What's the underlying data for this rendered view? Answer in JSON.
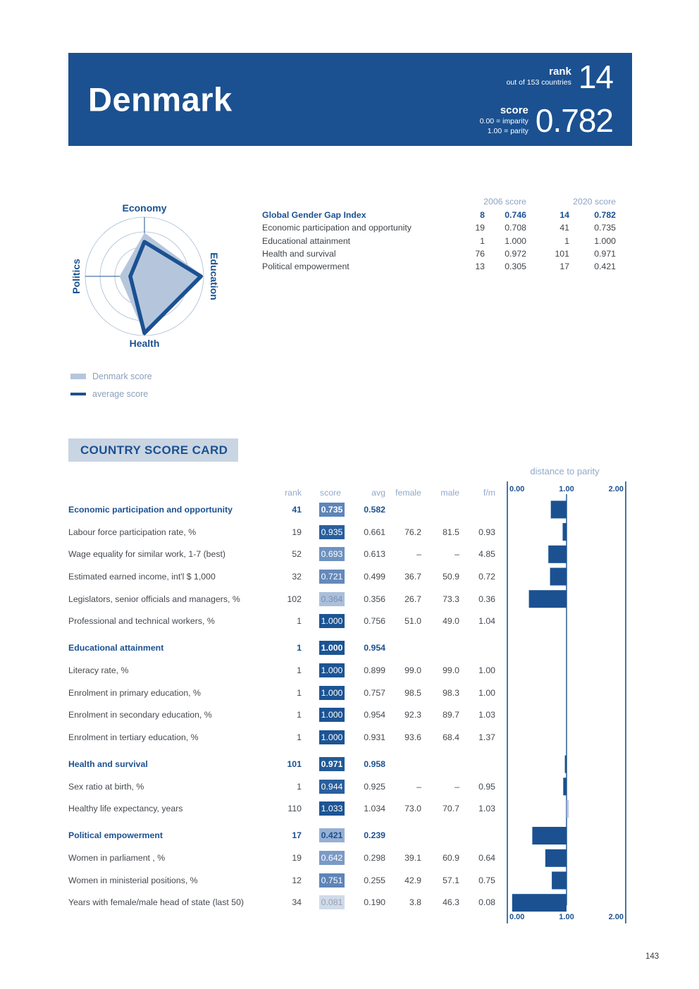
{
  "page": {
    "number": "143"
  },
  "header": {
    "country": "Denmark",
    "rank_label": "rank",
    "rank_sub": "out of 153 countries",
    "rank_value": "14",
    "score_label": "score",
    "score_sub1": "0.00 = imparity",
    "score_sub2": "1.00 = parity",
    "score_value": "0.782"
  },
  "colors": {
    "navy": "#1B5191",
    "light_fill": "#B5C6DC",
    "over_parity_bar": "#A9BDD8",
    "grid": "#A9BCD4",
    "muted_label": "#93A9C9"
  },
  "radar_legend": [
    "Denmark score",
    "average score"
  ],
  "chart_data": [
    {
      "type": "radar",
      "axes": [
        "Economy",
        "Education",
        "Health",
        "Politics"
      ],
      "rings": [
        0.25,
        0.5,
        0.75,
        1.0
      ],
      "series": [
        {
          "name": "Denmark score",
          "style": "filled-light",
          "values": [
            0.735,
            1.0,
            0.971,
            0.421
          ]
        },
        {
          "name": "average score",
          "style": "navy-line",
          "values": [
            0.582,
            0.954,
            0.958,
            0.239
          ]
        }
      ]
    },
    {
      "type": "bar",
      "title": "distance to parity",
      "orientation": "horizontal",
      "anchor": 1.0,
      "xlim": [
        0,
        2
      ],
      "ticks": [
        "0.00",
        "1.00",
        "2.00"
      ],
      "categories": [
        "Economic participation and opportunity",
        "Labour force participation rate, %",
        "Wage equality for similar work, 1-7 (best)",
        "Estimated earned income, int'l $ 1,000",
        "Legislators, senior officials and managers, %",
        "Professional and technical workers, %",
        "Educational attainment",
        "Literacy rate, %",
        "Enrolment in primary education, %",
        "Enrolment in secondary education, %",
        "Enrolment in tertiary education, %",
        "Health and survival",
        "Sex ratio at birth, %",
        "Healthy life expectancy, years",
        "Political empowerment",
        "Women in parliament , %",
        "Women in ministerial positions, %",
        "Years with female/male head of state (last 50)"
      ],
      "values": [
        0.735,
        0.935,
        0.693,
        0.721,
        0.364,
        1.0,
        1.0,
        1.0,
        1.0,
        1.0,
        1.0,
        0.971,
        0.944,
        1.033,
        0.421,
        0.642,
        0.751,
        0.081
      ]
    }
  ],
  "index_table": {
    "col_headers": [
      "2006 score",
      "2020 score"
    ],
    "rows": [
      {
        "label": "Global Gender Gap Index",
        "rank_2006": "8",
        "score_2006": "0.746",
        "rank_2020": "14",
        "score_2020": "0.782",
        "bold": true
      },
      {
        "label": "Economic participation and opportunity",
        "rank_2006": "19",
        "score_2006": "0.708",
        "rank_2020": "41",
        "score_2020": "0.735",
        "bold": false
      },
      {
        "label": "Educational attainment",
        "rank_2006": "1",
        "score_2006": "1.000",
        "rank_2020": "1",
        "score_2020": "1.000",
        "bold": false
      },
      {
        "label": "Health and survival",
        "rank_2006": "76",
        "score_2006": "0.972",
        "rank_2020": "101",
        "score_2020": "0.971",
        "bold": false
      },
      {
        "label": "Political empowerment",
        "rank_2006": "13",
        "score_2006": "0.305",
        "rank_2020": "17",
        "score_2020": "0.421",
        "bold": false
      }
    ]
  },
  "scorecard": {
    "title": "COUNTRY SCORE CARD",
    "chart_title": "distance to parity",
    "col_headers": [
      "rank",
      "score",
      "avg",
      "female",
      "male",
      "f/m"
    ],
    "axis_ticks": [
      "0.00",
      "1.00",
      "2.00"
    ],
    "rows": [
      {
        "type": "section",
        "label": "Economic participation and opportunity",
        "rank": "41",
        "score": "0.735",
        "score_num": 0.735,
        "avg": "0.582",
        "female": "",
        "male": "",
        "fm": "",
        "box_bg": "#5E85B8",
        "box_fg": "#FFFFFF"
      },
      {
        "type": "indicator",
        "label": "Labour force participation rate, %",
        "rank": "19",
        "score": "0.935",
        "score_num": 0.935,
        "avg": "0.661",
        "female": "76.2",
        "male": "81.5",
        "fm": "0.93",
        "box_bg": "#2A5F9D",
        "box_fg": "#FFFFFF"
      },
      {
        "type": "indicator",
        "label": "Wage equality for similar work, 1-7 (best)",
        "rank": "52",
        "score": "0.693",
        "score_num": 0.693,
        "avg": "0.613",
        "female": "–",
        "male": "–",
        "fm": "4.85",
        "box_bg": "#6F92C0",
        "box_fg": "#FFFFFF"
      },
      {
        "type": "indicator",
        "label": "Estimated earned income, int'l $ 1,000",
        "rank": "32",
        "score": "0.721",
        "score_num": 0.721,
        "avg": "0.499",
        "female": "36.7",
        "male": "50.9",
        "fm": "0.72",
        "box_bg": "#6489BB",
        "box_fg": "#FFFFFF"
      },
      {
        "type": "indicator",
        "label": "Legislators, senior officials and managers, %",
        "rank": "102",
        "score": "0.364",
        "score_num": 0.364,
        "avg": "0.356",
        "female": "26.7",
        "male": "73.3",
        "fm": "0.36",
        "box_bg": "#AABFDA",
        "box_fg": "#7C90AE"
      },
      {
        "type": "indicator",
        "label": "Professional and technical workers, %",
        "rank": "1",
        "score": "1.000",
        "score_num": 1.0,
        "avg": "0.756",
        "female": "51.0",
        "male": "49.0",
        "fm": "1.04",
        "box_bg": "#1D5493",
        "box_fg": "#FFFFFF"
      },
      {
        "type": "section",
        "label": "Educational attainment",
        "rank": "1",
        "score": "1.000",
        "score_num": 1.0,
        "avg": "0.954",
        "female": "",
        "male": "",
        "fm": "",
        "box_bg": "#1D5493",
        "box_fg": "#FFFFFF"
      },
      {
        "type": "indicator",
        "label": "Literacy rate, %",
        "rank": "1",
        "score": "1.000",
        "score_num": 1.0,
        "avg": "0.899",
        "female": "99.0",
        "male": "99.0",
        "fm": "1.00",
        "box_bg": "#1D5493",
        "box_fg": "#FFFFFF"
      },
      {
        "type": "indicator",
        "label": "Enrolment in primary education, %",
        "rank": "1",
        "score": "1.000",
        "score_num": 1.0,
        "avg": "0.757",
        "female": "98.5",
        "male": "98.3",
        "fm": "1.00",
        "box_bg": "#1D5493",
        "box_fg": "#FFFFFF"
      },
      {
        "type": "indicator",
        "label": "Enrolment in secondary education, %",
        "rank": "1",
        "score": "1.000",
        "score_num": 1.0,
        "avg": "0.954",
        "female": "92.3",
        "male": "89.7",
        "fm": "1.03",
        "box_bg": "#1D5493",
        "box_fg": "#FFFFFF"
      },
      {
        "type": "indicator",
        "label": "Enrolment in tertiary education, %",
        "rank": "1",
        "score": "1.000",
        "score_num": 1.0,
        "avg": "0.931",
        "female": "93.6",
        "male": "68.4",
        "fm": "1.37",
        "box_bg": "#1D5493",
        "box_fg": "#FFFFFF"
      },
      {
        "type": "section",
        "label": "Health and survival",
        "rank": "101",
        "score": "0.971",
        "score_num": 0.971,
        "avg": "0.958",
        "female": "",
        "male": "",
        "fm": "",
        "box_bg": "#225A98",
        "box_fg": "#FFFFFF"
      },
      {
        "type": "indicator",
        "label": "Sex ratio at birth, %",
        "rank": "1",
        "score": "0.944",
        "score_num": 0.944,
        "avg": "0.925",
        "female": "–",
        "male": "–",
        "fm": "0.95",
        "box_bg": "#2A5F9D",
        "box_fg": "#FFFFFF"
      },
      {
        "type": "indicator",
        "label": "Healthy life expectancy, years",
        "rank": "110",
        "score": "1.033",
        "score_num": 1.033,
        "avg": "1.034",
        "female": "73.0",
        "male": "70.7",
        "fm": "1.03",
        "box_bg": "#1D5493",
        "box_fg": "#FFFFFF"
      },
      {
        "type": "section",
        "label": "Political empowerment",
        "rank": "17",
        "score": "0.421",
        "score_num": 0.421,
        "avg": "0.239",
        "female": "",
        "male": "",
        "fm": "",
        "box_bg": "#97B0D2",
        "box_fg": "#1B5191"
      },
      {
        "type": "indicator",
        "label": "Women in parliament , %",
        "rank": "19",
        "score": "0.642",
        "score_num": 0.642,
        "avg": "0.298",
        "female": "39.1",
        "male": "60.9",
        "fm": "0.64",
        "box_bg": "#7B9AC6",
        "box_fg": "#FFFFFF"
      },
      {
        "type": "indicator",
        "label": "Women in ministerial positions, %",
        "rank": "12",
        "score": "0.751",
        "score_num": 0.751,
        "avg": "0.255",
        "female": "42.9",
        "male": "57.1",
        "fm": "0.75",
        "box_bg": "#5E85B8",
        "box_fg": "#FFFFFF"
      },
      {
        "type": "indicator",
        "label": "Years with female/male head of state (last 50)",
        "rank": "34",
        "score": "0.081",
        "score_num": 0.081,
        "avg": "0.190",
        "female": "3.8",
        "male": "46.3",
        "fm": "0.08",
        "box_bg": "#D0DAE8",
        "box_fg": "#97A2B2"
      }
    ]
  }
}
